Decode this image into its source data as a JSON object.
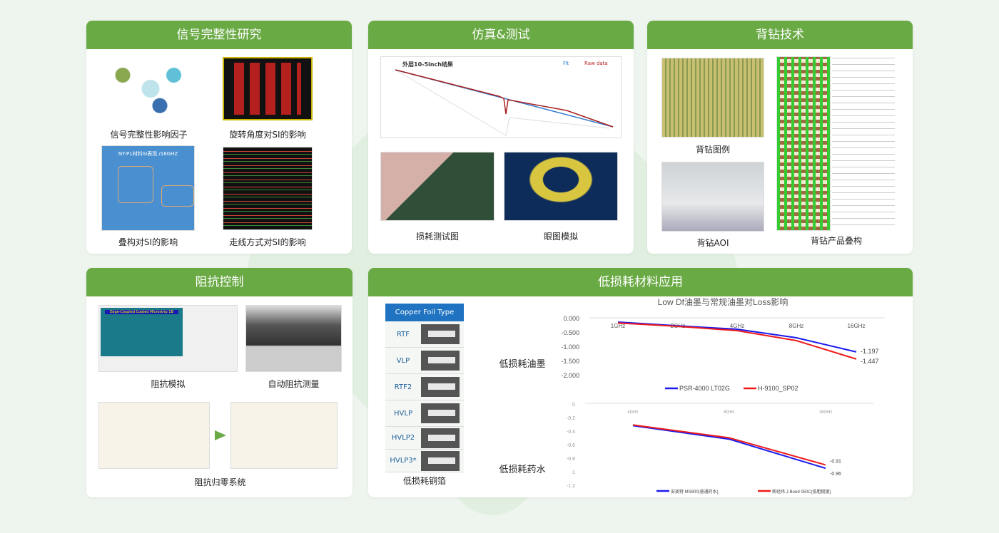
{
  "colors": {
    "header": "#6aaa45",
    "blue_series": "#1a1aee",
    "red_series": "#ee1a1a"
  },
  "cards": {
    "si": {
      "title": "信号完整性研究",
      "captions": [
        "信号完整性影响因子",
        "旋转角度对SI的影响",
        "叠构对SI的影响",
        "走线方式对SI的影响"
      ],
      "chart_title": "NY-P1材料SI表现 /16GHZ"
    },
    "sim": {
      "title": "仿真&测试",
      "chart_title": "外层10-5inch结果",
      "legend": [
        "Fit",
        "Raw data"
      ],
      "captions": [
        "损耗测试图",
        "眼图模拟"
      ]
    },
    "backdrill": {
      "title": "背钻技术",
      "captions": [
        "背钻图例",
        "背钻AOI",
        "背钻产品叠构"
      ]
    },
    "impedance": {
      "title": "阻抗控制",
      "captions": [
        "阻抗模拟",
        "自动阻抗测量",
        "阻抗归零系统"
      ],
      "sim_title": "Edge-Coupled Coated Microstrip 1B"
    },
    "lowloss": {
      "title": "低损耗材料应用",
      "foil_header": "Copper Foil Type",
      "foil_types": [
        "RTF",
        "VLP",
        "RTF2",
        "HVLP",
        "HVLP2",
        "HVLP3*"
      ],
      "labels": [
        "低损耗油墨",
        "低损耗药水",
        "低损耗铜箔"
      ]
    }
  },
  "chart_data": [
    {
      "type": "line",
      "title": "Low Df油墨与常规油墨对Loss影响",
      "categories": [
        "1GHz",
        "2GHz",
        "4GHz",
        "8GHz",
        "16GHz"
      ],
      "ylim": [
        -2,
        0
      ],
      "yticks": [
        "0.000",
        "-0.500",
        "-1.000",
        "-1.500",
        "-2.000"
      ],
      "series": [
        {
          "name": "PSR-4000 LT02G",
          "values": [
            -0.15,
            -0.28,
            -0.4,
            -0.7,
            -1.197
          ],
          "end_label": "-1.197"
        },
        {
          "name": "H-9100_SP02",
          "values": [
            -0.18,
            -0.3,
            -0.45,
            -0.8,
            -1.447
          ],
          "end_label": "-1.447"
        }
      ]
    },
    {
      "type": "line",
      "categories": [
        "4GHz",
        "8GHz",
        "16GHz"
      ],
      "ylim": [
        -1.2,
        0
      ],
      "yticks": [
        "0",
        "-0.2",
        "-0.4",
        "-0.6",
        "-0.8",
        "-1",
        "-1.2"
      ],
      "series": [
        {
          "name": "安美特 MS800(普通药水)",
          "values": [
            -0.33,
            -0.53,
            -0.96
          ],
          "end_label": "-0.96"
        },
        {
          "name": "新经纬 J-Bond 050C(低粗糙度)",
          "values": [
            -0.32,
            -0.51,
            -0.91
          ],
          "end_label": "-0.91"
        }
      ]
    }
  ]
}
